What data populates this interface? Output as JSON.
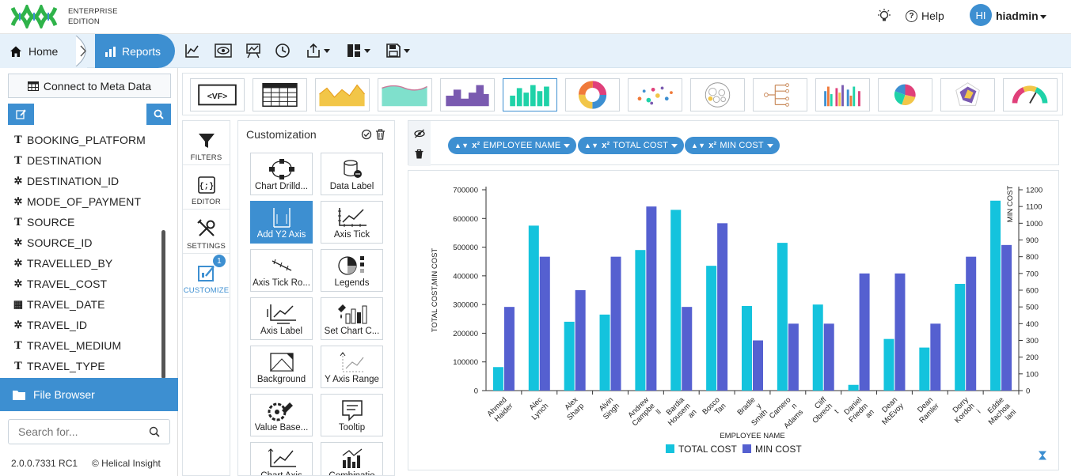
{
  "app": {
    "edition_line1": "ENTERPRISE",
    "edition_line2": "EDITION"
  },
  "header": {
    "help_label": "Help",
    "avatar_initials": "HI",
    "username": "hiadmin"
  },
  "breadcrumb": {
    "home": "Home",
    "reports": "Reports"
  },
  "toolbar": {
    "icons": [
      "line-chart-icon",
      "preview-icon",
      "report-chart-icon",
      "history-icon",
      "export-icon",
      "layout-icon",
      "save-icon"
    ]
  },
  "left_panel": {
    "connect_label": "Connect to Meta Data",
    "fields": [
      {
        "name": "BOOKING_PLATFORM",
        "type": "text"
      },
      {
        "name": "DESTINATION",
        "type": "text"
      },
      {
        "name": "DESTINATION_ID",
        "type": "number"
      },
      {
        "name": "MODE_OF_PAYMENT",
        "type": "number"
      },
      {
        "name": "SOURCE",
        "type": "text"
      },
      {
        "name": "SOURCE_ID",
        "type": "number"
      },
      {
        "name": "TRAVELLED_BY",
        "type": "number"
      },
      {
        "name": "TRAVEL_COST",
        "type": "number"
      },
      {
        "name": "TRAVEL_DATE",
        "type": "date"
      },
      {
        "name": "TRAVEL_ID",
        "type": "number"
      },
      {
        "name": "TRAVEL_MEDIUM",
        "type": "text"
      },
      {
        "name": "TRAVEL_TYPE",
        "type": "text"
      }
    ],
    "file_browser_label": "File Browser",
    "search_placeholder": "Search for...",
    "version": "2.0.0.7331 RC1",
    "copyright": "© Helical Insight"
  },
  "chart_types": [
    "vf",
    "table",
    "area",
    "stream",
    "bar-steps",
    "grouped-bar",
    "donut",
    "scatter",
    "pack",
    "tree",
    "multi-bar",
    "pie",
    "radar",
    "gauge"
  ],
  "side_tabs": {
    "filters": "FILTERS",
    "editor": "EDITOR",
    "settings": "SETTINGS",
    "customize": "CUSTOMIZE",
    "customize_badge": "1"
  },
  "customization": {
    "title": "Customization",
    "tiles": [
      {
        "label": "Chart Drilld...",
        "icon": "drilldown-icon"
      },
      {
        "label": "Data Label",
        "icon": "data-label-icon"
      },
      {
        "label": "Add Y2 Axis",
        "icon": "y2-axis-icon"
      },
      {
        "label": "Axis Tick",
        "icon": "axis-tick-icon"
      },
      {
        "label": "Axis Tick Ro...",
        "icon": "axis-tick-rotate-icon"
      },
      {
        "label": "Legends",
        "icon": "legends-icon"
      },
      {
        "label": "Axis Label",
        "icon": "axis-label-icon"
      },
      {
        "label": "Set Chart C...",
        "icon": "chart-color-icon"
      },
      {
        "label": "Background",
        "icon": "background-icon"
      },
      {
        "label": "Y Axis Range",
        "icon": "y-axis-range-icon"
      },
      {
        "label": "Value Base...",
        "icon": "value-based-icon"
      },
      {
        "label": "Tooltip",
        "icon": "tooltip-icon"
      },
      {
        "label": "Chart Axis",
        "icon": "chart-axis-icon"
      },
      {
        "label": "Combinatio",
        "icon": "combination-icon"
      }
    ]
  },
  "fields_bar": {
    "pills": [
      {
        "label": "EMPLOYEE NAME",
        "prefix": "x²"
      },
      {
        "label": "TOTAL COST",
        "prefix": "x²"
      },
      {
        "label": "MIN COST",
        "prefix": "x²"
      }
    ]
  },
  "chart_data": {
    "type": "bar",
    "title": "",
    "xlabel": "EMPLOYEE NAME",
    "ylabel": "TOTAL COST,MIN COST",
    "y2label": "MIN COST",
    "ylim": [
      0,
      700000
    ],
    "y2lim": [
      0,
      1200
    ],
    "yticks": [
      "0",
      "100000",
      "200000",
      "300000",
      "400000",
      "500000",
      "600000",
      "700000"
    ],
    "y2ticks": [
      "0",
      "100",
      "200",
      "300",
      "400",
      "500",
      "600",
      "700",
      "800",
      "900",
      "1000",
      "1100",
      "1200"
    ],
    "categories": [
      [
        "Ahmed",
        "Haider"
      ],
      [
        "Alec",
        "Lynch"
      ],
      [
        "Alex",
        "Sharp"
      ],
      [
        "Alvin",
        "Singh"
      ],
      [
        "Andrew",
        "Campbe",
        "ll"
      ],
      [
        "Bardia",
        "Housem",
        "an"
      ],
      [
        "Bosco",
        "Tan"
      ],
      [
        "Bradle",
        "y",
        "Smith"
      ],
      [
        "Camero",
        "n",
        "Adams"
      ],
      [
        "Cliff",
        "Obrech",
        "t"
      ],
      [
        "Daniel",
        "Friedm",
        "an"
      ],
      [
        "Dean",
        "McEvoy"
      ],
      [
        "Dean",
        "Ramler"
      ],
      [
        "Dorry",
        "Kordoh",
        "i"
      ],
      [
        "Eddie",
        "Machoa",
        "lani"
      ]
    ],
    "series": [
      {
        "name": "TOTAL COST",
        "axis": "y",
        "color": "#14c3dd",
        "values": [
          82000,
          575000,
          240000,
          265000,
          490000,
          630000,
          435000,
          295000,
          515000,
          300000,
          20000,
          180000,
          150000,
          372000,
          662000
        ]
      },
      {
        "name": "MIN COST",
        "axis": "y2",
        "color": "#5560d0",
        "values": [
          500,
          800,
          600,
          800,
          1100,
          500,
          1000,
          300,
          400,
          400,
          700,
          700,
          400,
          800,
          870
        ]
      }
    ],
    "legend_position": "bottom"
  }
}
